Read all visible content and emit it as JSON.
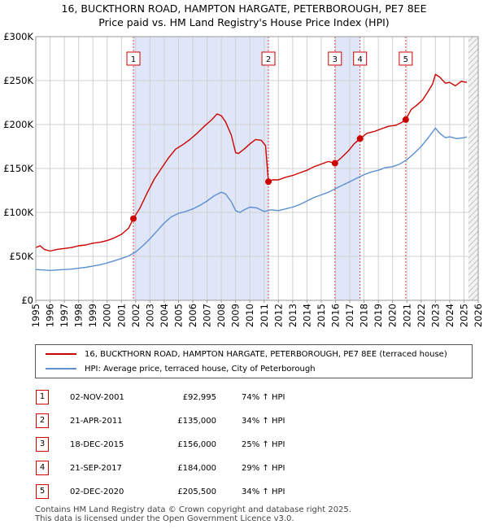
{
  "title_line1": "16, BUCKTHORN ROAD, HAMPTON HARGATE, PETERBOROUGH, PE7 8EE",
  "title_line2": "Price paid vs. HM Land Registry's House Price Index (HPI)",
  "legend": {
    "property_label": "16, BUCKTHORN ROAD, HAMPTON HARGATE, PETERBOROUGH, PE7 8EE (terraced house)",
    "hpi_label": "HPI: Average price, terraced house, City of Peterborough"
  },
  "colors": {
    "property": "#cc0000",
    "hpi": "#5b8fd0",
    "shade": "#dfe6f7",
    "grid": "#d0d0d0"
  },
  "transactions": [
    {
      "num": "1",
      "date": "02-NOV-2001",
      "price": "£92,995",
      "hpi": "74% ↑ HPI"
    },
    {
      "num": "2",
      "date": "21-APR-2011",
      "price": "£135,000",
      "hpi": "34% ↑ HPI"
    },
    {
      "num": "3",
      "date": "18-DEC-2015",
      "price": "£156,000",
      "hpi": "25% ↑ HPI"
    },
    {
      "num": "4",
      "date": "21-SEP-2017",
      "price": "£184,000",
      "hpi": "29% ↑ HPI"
    },
    {
      "num": "5",
      "date": "02-DEC-2020",
      "price": "£205,500",
      "hpi": "34% ↑ HPI"
    }
  ],
  "footer_line1": "Contains HM Land Registry data © Crown copyright and database right 2025.",
  "footer_line2": "This data is licensed under the Open Government Licence v3.0.",
  "chart_data": {
    "type": "line",
    "title": "16, BUCKTHORN ROAD, HAMPTON HARGATE, PETERBOROUGH, PE7 8EE",
    "subtitle": "Price paid vs. HM Land Registry's House Price Index (HPI)",
    "xlim": [
      1995,
      2026
    ],
    "ylim": [
      0,
      300000
    ],
    "x_ticks": [
      1995,
      1996,
      1997,
      1998,
      1999,
      2000,
      2001,
      2002,
      2003,
      2004,
      2005,
      2006,
      2007,
      2008,
      2009,
      2010,
      2011,
      2012,
      2013,
      2014,
      2015,
      2016,
      2017,
      2018,
      2019,
      2020,
      2021,
      2022,
      2023,
      2024,
      2025,
      2026
    ],
    "y_ticks": [
      {
        "value": 0,
        "label": "£0"
      },
      {
        "value": 50000,
        "label": "£50K"
      },
      {
        "value": 100000,
        "label": "£100K"
      },
      {
        "value": 150000,
        "label": "£150K"
      },
      {
        "value": 200000,
        "label": "£200K"
      },
      {
        "value": 250000,
        "label": "£250K"
      },
      {
        "value": 300000,
        "label": "£300K"
      }
    ],
    "shaded_spans": [
      [
        2001.84,
        2011.3
      ],
      [
        2015.96,
        2017.72
      ]
    ],
    "future_hatch_from": 2025.3,
    "sales": [
      {
        "label": "1",
        "x": 2001.84,
        "y": 92995
      },
      {
        "label": "2",
        "x": 2011.3,
        "y": 135000
      },
      {
        "label": "3",
        "x": 2015.96,
        "y": 156000
      },
      {
        "label": "4",
        "x": 2017.72,
        "y": 184000
      },
      {
        "label": "5",
        "x": 2020.92,
        "y": 205500
      }
    ],
    "series": [
      {
        "name": "16, BUCKTHORN ROAD, HAMPTON HARGATE, PETERBOROUGH, PE7 8EE (terraced house)",
        "x": [
          1995.0,
          1995.3,
          1995.6,
          1996.0,
          1996.5,
          1997.0,
          1997.5,
          1998.0,
          1998.5,
          1999.0,
          1999.5,
          2000.0,
          2000.5,
          2001.0,
          2001.5,
          2001.84,
          2002.3,
          2002.8,
          2003.3,
          2003.8,
          2004.3,
          2004.8,
          2005.3,
          2005.8,
          2006.3,
          2006.8,
          2007.3,
          2007.7,
          2008.0,
          2008.3,
          2008.7,
          2009.0,
          2009.2,
          2009.6,
          2010.0,
          2010.4,
          2010.8,
          2011.1,
          2011.3,
          2011.6,
          2012.0,
          2012.5,
          2013.0,
          2013.5,
          2014.0,
          2014.5,
          2015.0,
          2015.5,
          2015.96,
          2016.4,
          2016.9,
          2017.3,
          2017.72,
          2018.2,
          2018.7,
          2019.2,
          2019.7,
          2020.2,
          2020.6,
          2020.92,
          2021.3,
          2021.7,
          2022.1,
          2022.5,
          2022.8,
          2023.0,
          2023.3,
          2023.7,
          2024.0,
          2024.4,
          2024.8,
          2025.2
        ],
        "values": [
          60000,
          62000,
          58000,
          56000,
          58000,
          59000,
          60000,
          62000,
          63000,
          65000,
          66000,
          68000,
          71000,
          75000,
          82000,
          92995,
          105000,
          122000,
          138000,
          150000,
          162000,
          172000,
          177000,
          183000,
          190000,
          198000,
          205000,
          212000,
          210000,
          203000,
          188000,
          168000,
          167000,
          172000,
          178000,
          183000,
          182000,
          176000,
          135000,
          137000,
          137000,
          140000,
          142000,
          145000,
          148000,
          152000,
          155000,
          158000,
          156000,
          162000,
          170000,
          178000,
          184000,
          190000,
          192000,
          195000,
          198000,
          199000,
          202000,
          205500,
          217000,
          222000,
          228000,
          238000,
          246000,
          257000,
          254000,
          247000,
          248000,
          244000,
          249000,
          248000
        ]
      },
      {
        "name": "HPI: Average price, terraced house, City of Peterborough",
        "x": [
          1995.0,
          1995.5,
          1996.0,
          1996.5,
          1997.0,
          1997.5,
          1998.0,
          1998.5,
          1999.0,
          1999.5,
          2000.0,
          2000.5,
          2001.0,
          2001.5,
          2002.0,
          2002.5,
          2003.0,
          2003.5,
          2004.0,
          2004.5,
          2005.0,
          2005.5,
          2006.0,
          2006.5,
          2007.0,
          2007.5,
          2008.0,
          2008.3,
          2008.7,
          2009.0,
          2009.3,
          2009.6,
          2010.0,
          2010.5,
          2011.0,
          2011.5,
          2012.0,
          2012.5,
          2013.0,
          2013.5,
          2014.0,
          2014.5,
          2015.0,
          2015.5,
          2016.0,
          2016.5,
          2017.0,
          2017.5,
          2018.0,
          2018.5,
          2019.0,
          2019.5,
          2020.0,
          2020.5,
          2021.0,
          2021.5,
          2022.0,
          2022.5,
          2023.0,
          2023.3,
          2023.7,
          2024.0,
          2024.5,
          2025.0,
          2025.2
        ],
        "values": [
          35000,
          34500,
          34000,
          34500,
          35000,
          35500,
          36500,
          37500,
          39000,
          40500,
          42500,
          45000,
          47500,
          50500,
          55000,
          62000,
          70000,
          79000,
          88000,
          95000,
          99000,
          101000,
          104000,
          108000,
          113000,
          119000,
          123000,
          121000,
          112000,
          102000,
          100000,
          103000,
          106000,
          105000,
          101000,
          103000,
          102000,
          104000,
          106000,
          109000,
          113000,
          117000,
          120000,
          123000,
          127000,
          131000,
          135000,
          139000,
          143000,
          146000,
          148000,
          151000,
          152000,
          155000,
          160000,
          167000,
          175000,
          185000,
          196000,
          190000,
          185000,
          186000,
          184000,
          185000,
          186000
        ]
      }
    ]
  }
}
